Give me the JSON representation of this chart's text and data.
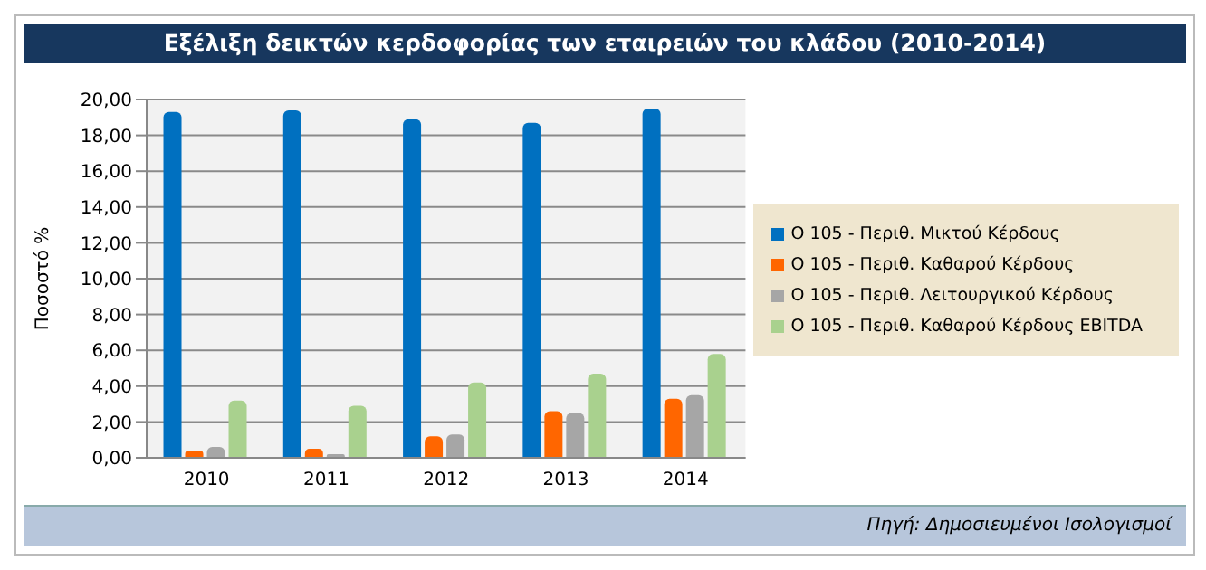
{
  "chart_data": {
    "type": "bar",
    "title": "Εξέλιξη δεικτών κερδοφορίας των εταιρειών του κλάδου (2010-2014)",
    "ylabel": "Ποσοστό %",
    "categories": [
      "2010",
      "2011",
      "2012",
      "2013",
      "2014"
    ],
    "series": [
      {
        "name": "Ο 105 - Περιθ. Μικτού Κέρδους",
        "color": "#0070c0",
        "values": [
          19.3,
          19.4,
          18.9,
          18.7,
          19.5
        ]
      },
      {
        "name": "Ο 105 - Περιθ. Καθαρού Κέρδους",
        "color": "#ff6600",
        "values": [
          0.4,
          0.5,
          1.2,
          2.6,
          3.3
        ]
      },
      {
        "name": "Ο 105 - Περιθ. Λειτουργικού Κέρδους",
        "color": "#a6a6a6",
        "values": [
          0.6,
          0.2,
          1.3,
          2.5,
          3.5
        ]
      },
      {
        "name": "Ο 105 - Περιθ. Καθαρού Κέρδους EBITDA",
        "color": "#a9d18e",
        "values": [
          3.2,
          2.9,
          4.2,
          4.7,
          5.8
        ]
      }
    ],
    "ylim": [
      0,
      20
    ],
    "yticks": [
      {
        "value": 0,
        "label": "0,00"
      },
      {
        "value": 2,
        "label": "2,00"
      },
      {
        "value": 4,
        "label": "4,00"
      },
      {
        "value": 6,
        "label": "6,00"
      },
      {
        "value": 8,
        "label": "8,00"
      },
      {
        "value": 10,
        "label": "10,00"
      },
      {
        "value": 12,
        "label": "12,00"
      },
      {
        "value": 14,
        "label": "14,00"
      },
      {
        "value": 16,
        "label": "16,00"
      },
      {
        "value": 18,
        "label": "18,00"
      },
      {
        "value": 20,
        "label": "20,00"
      }
    ],
    "grid": "y",
    "legend": "right",
    "annotations": [
      "Πηγή: Δημοσιευμένοι Ισολογισμοί"
    ]
  }
}
